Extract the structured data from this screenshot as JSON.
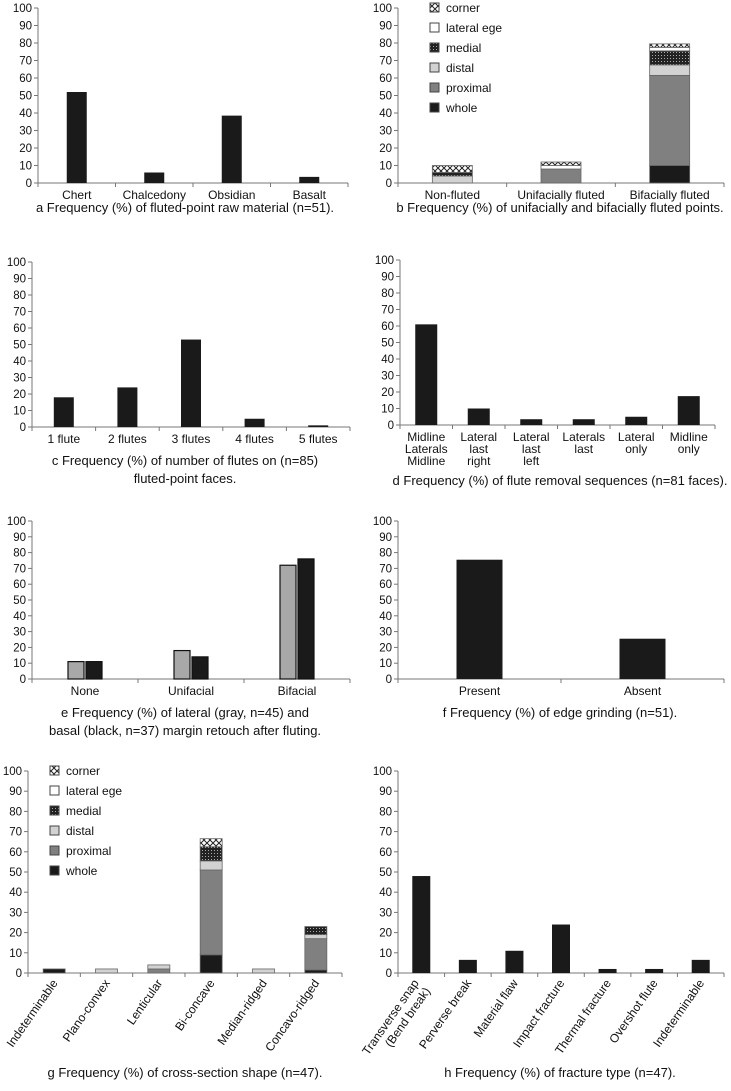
{
  "colors": {
    "bar": "#1a1a1a",
    "gray": "#a8a8a8",
    "whole": "#1a1a1a",
    "proximal": "#808080",
    "distal": "#d2d2d2",
    "medial": "#2a2a2a",
    "lateral_edge": "#ffffff",
    "corner": "#ffffff"
  },
  "chart_data": [
    {
      "id": "a",
      "type": "bar",
      "title": "a Frequency (%) of fluted-point raw material (n=51).",
      "caption_lines": [
        "a Frequency (%) of fluted-point raw material (n=51)."
      ],
      "categories": [
        "Chert",
        "Chalcedony",
        "Obsidian",
        "Basalt"
      ],
      "values": [
        52,
        6,
        38.5,
        3.5
      ],
      "ylim": [
        0,
        100
      ],
      "yticks": [
        0,
        10,
        20,
        30,
        40,
        50,
        60,
        70,
        80,
        90,
        100
      ]
    },
    {
      "id": "b",
      "type": "bar",
      "stacked": true,
      "title": "b Frequency (%) of unifacially and bifacially fluted points.",
      "caption_lines": [
        "b Frequency (%) of unifacially and bifacially fluted points."
      ],
      "categories": [
        "Non-fluted",
        "Unifacially fluted",
        "Bifacially fluted"
      ],
      "legend": [
        "corner",
        "lateral ege",
        "medial",
        "distal",
        "proximal",
        "whole"
      ],
      "legend_position": "top-left",
      "series": [
        {
          "name": "whole",
          "values": [
            0,
            0,
            10
          ]
        },
        {
          "name": "proximal",
          "values": [
            0,
            8,
            51.5
          ]
        },
        {
          "name": "distal",
          "values": [
            4,
            0,
            6
          ]
        },
        {
          "name": "medial",
          "values": [
            2,
            0,
            8
          ]
        },
        {
          "name": "lateral ege",
          "values": [
            0,
            2,
            2
          ]
        },
        {
          "name": "corner",
          "values": [
            4,
            2,
            2
          ]
        }
      ],
      "ylim": [
        0,
        100
      ],
      "yticks": [
        0,
        10,
        20,
        30,
        40,
        50,
        60,
        70,
        80,
        90,
        100
      ]
    },
    {
      "id": "c",
      "type": "bar",
      "title": "c Frequency (%) of number of flutes on (n=85) fluted-point faces.",
      "caption_lines": [
        "c Frequency (%) of number of flutes on (n=85)",
        "fluted-point faces."
      ],
      "categories": [
        "1 flute",
        "2 flutes",
        "3 flutes",
        "4 flutes",
        "5 flutes"
      ],
      "values": [
        18,
        24,
        53,
        5,
        1
      ],
      "ylim": [
        0,
        100
      ],
      "yticks": [
        0,
        10,
        20,
        30,
        40,
        50,
        60,
        70,
        80,
        90,
        100
      ]
    },
    {
      "id": "d",
      "type": "bar",
      "title": "d Frequency (%) of flute removal sequences (n=81 faces).",
      "caption_lines": [
        "d Frequency (%) of flute removal sequences (n=81 faces)."
      ],
      "categories": [
        [
          "Midline",
          "Laterals",
          "Midline"
        ],
        [
          "Lateral",
          "last",
          "right"
        ],
        [
          "Lateral",
          "last",
          "left"
        ],
        [
          "Laterals",
          "last"
        ],
        [
          "Lateral",
          "only"
        ],
        [
          "Midline",
          "only"
        ]
      ],
      "values": [
        61,
        10,
        3.5,
        3.5,
        5,
        17.5
      ],
      "ylim": [
        0,
        100
      ],
      "yticks": [
        0,
        10,
        20,
        30,
        40,
        50,
        60,
        70,
        80,
        90,
        100
      ]
    },
    {
      "id": "e",
      "type": "bar",
      "grouped": true,
      "title": "e Frequency (%) of lateral (gray, n=45) and basal (black, n=37) margin retouch after fluting.",
      "caption_lines": [
        "e Frequency (%) of lateral (gray, n=45) and",
        "basal (black, n=37) margin retouch after fluting."
      ],
      "categories": [
        "None",
        "Unifacial",
        "Bifacial"
      ],
      "series": [
        {
          "name": "lateral",
          "values": [
            11,
            18,
            72
          ]
        },
        {
          "name": "basal",
          "values": [
            11,
            14,
            76
          ]
        }
      ],
      "ylim": [
        0,
        100
      ],
      "yticks": [
        0,
        10,
        20,
        30,
        40,
        50,
        60,
        70,
        80,
        90,
        100
      ]
    },
    {
      "id": "f",
      "type": "bar",
      "title": "f Frequency (%) of edge grinding (n=51).",
      "caption_lines": [
        "f Frequency (%) of edge grinding (n=51)."
      ],
      "categories": [
        "Present",
        "Absent"
      ],
      "values": [
        75.5,
        25.5
      ],
      "ylim": [
        0,
        100
      ],
      "yticks": [
        0,
        10,
        20,
        30,
        40,
        50,
        60,
        70,
        80,
        90,
        100
      ]
    },
    {
      "id": "g",
      "type": "bar",
      "stacked": true,
      "title": "g Frequency (%) of cross-section shape (n=47).",
      "caption_lines": [
        "g Frequency (%) of cross-section shape (n=47)."
      ],
      "categories": [
        "Indeterminable",
        "Plano-convex",
        "Lenticular",
        "Bi-concave",
        "Median-ridged",
        "Concavo-ridged"
      ],
      "legend": [
        "corner",
        "lateral ege",
        "medial",
        "distal",
        "proximal",
        "whole"
      ],
      "legend_position": "top-left",
      "series": [
        {
          "name": "whole",
          "values": [
            2,
            0,
            0,
            9,
            0,
            1.5
          ]
        },
        {
          "name": "proximal",
          "values": [
            0,
            0,
            2,
            42,
            0,
            15.5
          ]
        },
        {
          "name": "distal",
          "values": [
            0,
            2,
            2,
            4.5,
            2,
            2
          ]
        },
        {
          "name": "medial",
          "values": [
            0,
            0,
            0,
            7,
            0,
            4
          ]
        },
        {
          "name": "lateral ege",
          "values": [
            0,
            0,
            0,
            0,
            0,
            0
          ]
        },
        {
          "name": "corner",
          "values": [
            0,
            0,
            0,
            4,
            0,
            0
          ]
        }
      ],
      "ylim": [
        0,
        100
      ],
      "yticks": [
        0,
        10,
        20,
        30,
        40,
        50,
        60,
        70,
        80,
        90,
        100
      ]
    },
    {
      "id": "h",
      "type": "bar",
      "title": "h Frequency (%) of fracture type (n=47).",
      "caption_lines": [
        "h Frequency (%) of fracture type (n=47)."
      ],
      "categories": [
        [
          "Transverse snap",
          "(Bend break)"
        ],
        "Perverse break",
        "Material flaw",
        "Impact fracture",
        "Thermal fracture",
        "Overshot flute",
        "Indeterminable"
      ],
      "values": [
        48,
        6.5,
        11,
        24,
        2,
        2,
        6.5
      ],
      "ylim": [
        0,
        100
      ],
      "yticks": [
        0,
        10,
        20,
        30,
        40,
        50,
        60,
        70,
        80,
        90,
        100
      ]
    }
  ]
}
